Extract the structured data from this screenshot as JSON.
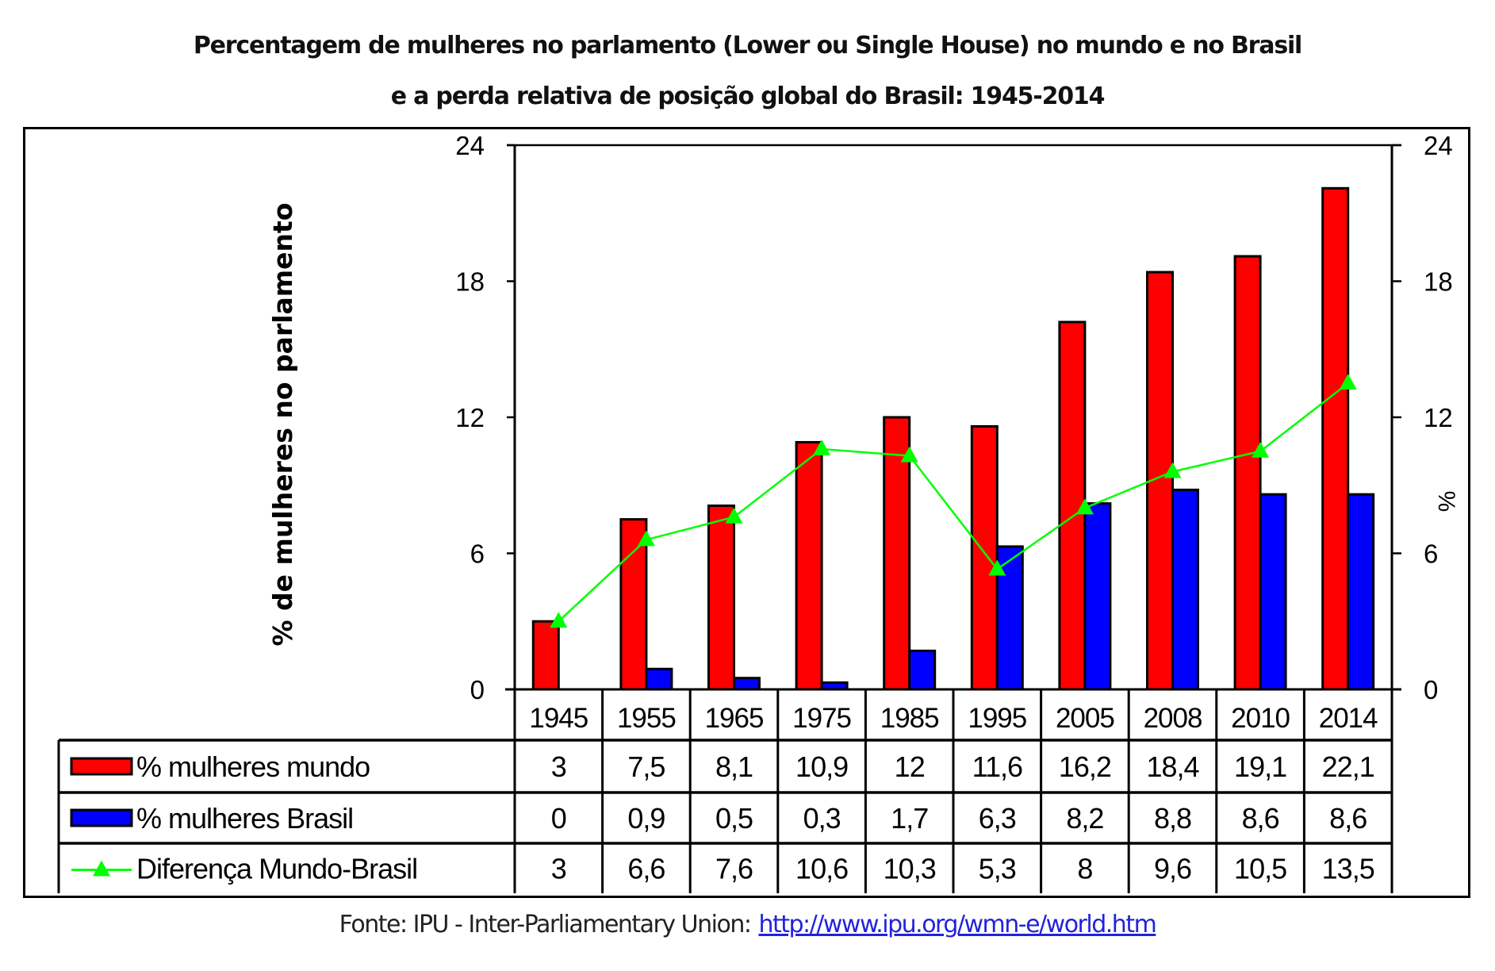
{
  "chart_data": {
    "type": "bar",
    "title": "Percentagem de mulheres no parlamento (Lower ou Single House) no mundo e no Brasil",
    "subtitle": "e a perda relativa de posição global do Brasil: 1945-2014",
    "ylabel": "% de mulheres no parlamento",
    "ylabel_right": "%",
    "ylim": [
      0,
      24
    ],
    "ylim_right": [
      0,
      24
    ],
    "yticks": [
      0,
      6,
      12,
      18,
      24
    ],
    "yticks_right": [
      0,
      6,
      12,
      18,
      24
    ],
    "categories": [
      "1945",
      "1955",
      "1965",
      "1975",
      "1985",
      "1995",
      "2005",
      "2008",
      "2010",
      "2014"
    ],
    "series": [
      {
        "name": "% mulheres mundo",
        "kind": "bar",
        "color": "#ff0000",
        "values": [
          3,
          7.5,
          8.1,
          10.9,
          12,
          11.6,
          16.2,
          18.4,
          19.1,
          22.1
        ],
        "labels": [
          "3",
          "7,5",
          "8,1",
          "10,9",
          "12",
          "11,6",
          "16,2",
          "18,4",
          "19,1",
          "22,1"
        ]
      },
      {
        "name": "% mulheres Brasil",
        "kind": "bar",
        "color": "#0000ff",
        "values": [
          0,
          0.9,
          0.5,
          0.3,
          1.7,
          6.3,
          8.2,
          8.8,
          8.6,
          8.6
        ],
        "labels": [
          "0",
          "0,9",
          "0,5",
          "0,3",
          "1,7",
          "6,3",
          "8,2",
          "8,8",
          "8,6",
          "8,6"
        ]
      },
      {
        "name": "Diferença Mundo-Brasil",
        "kind": "line",
        "axis": "right",
        "marker": "triangle",
        "color": "#00ff00",
        "values": [
          3,
          6.6,
          7.6,
          10.6,
          10.3,
          5.3,
          8,
          9.6,
          10.5,
          13.5
        ],
        "labels": [
          "3",
          "6,6",
          "7,6",
          "10,6",
          "10,3",
          "5,3",
          "8",
          "9,6",
          "10,5",
          "13,5"
        ]
      }
    ],
    "data_table": true,
    "grid": false,
    "legend": "data-table-left"
  },
  "title": {
    "line1": "Percentagem de mulheres no parlamento (Lower ou Single House) no mundo e no Brasil",
    "line2": "e a perda relativa de posição global do Brasil: 1945-2014"
  },
  "source": {
    "label": "Fonte: IPU - Inter-Parliamentary Union:",
    "link": "http://www.ipu.org/wmn-e/world.htm"
  }
}
